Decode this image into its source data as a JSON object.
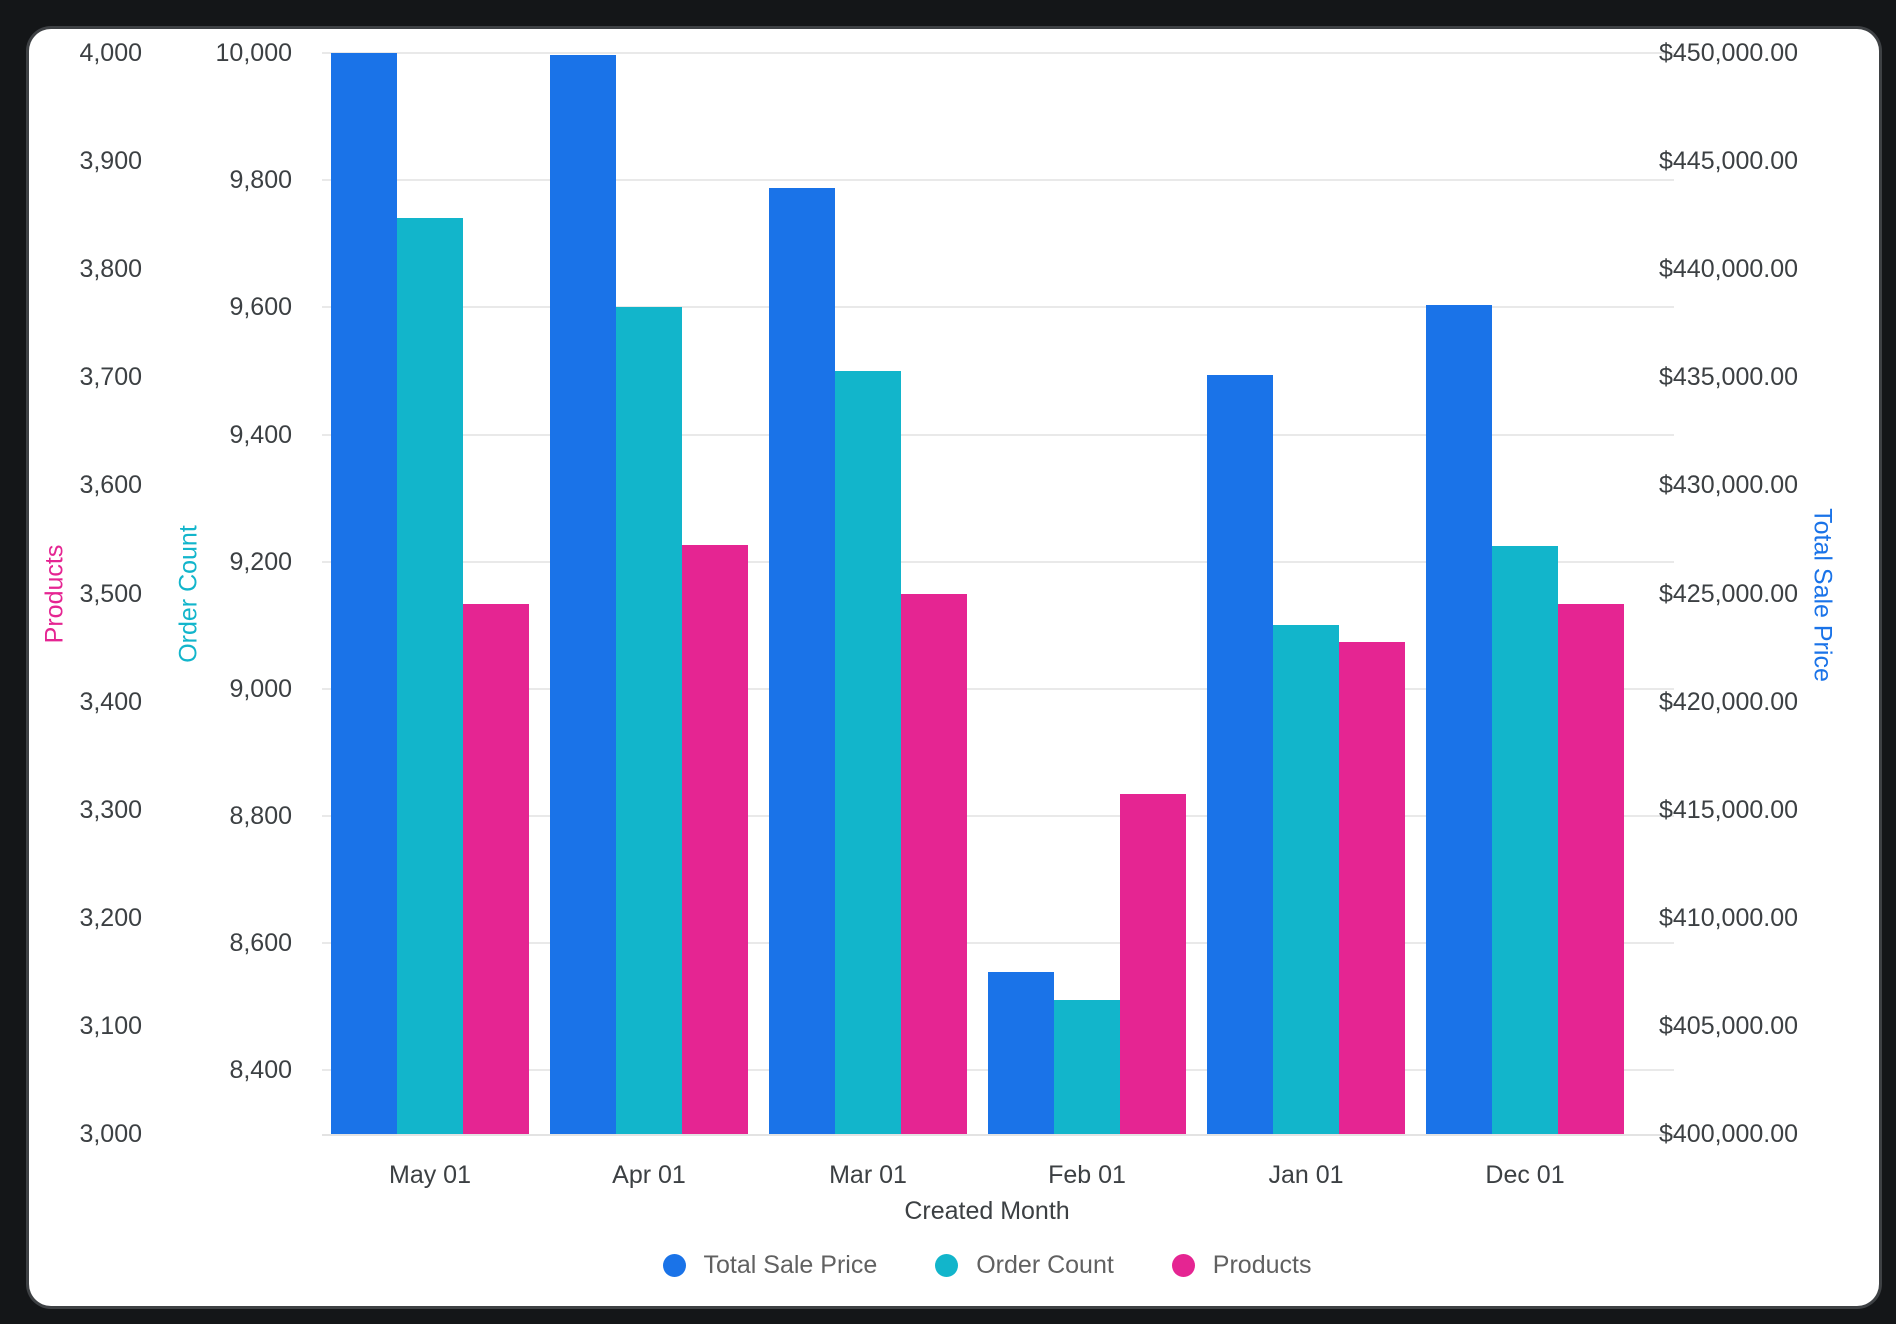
{
  "chart_data": {
    "type": "bar",
    "categories": [
      "May 01",
      "Apr 01",
      "Mar 01",
      "Feb 01",
      "Jan 01",
      "Dec 01"
    ],
    "xlabel": "Created Month",
    "legend_position": "bottom",
    "grid": "horizontal gridlines at Order Count ticks",
    "series": [
      {
        "name": "Total Sale Price",
        "axis": "price",
        "color": "#1A73E8",
        "values": [
          450000,
          449900,
          443750,
          407500,
          435100,
          438350
        ]
      },
      {
        "name": "Order Count",
        "axis": "order",
        "color": "#12B5CB",
        "values": [
          9740,
          9600,
          9500,
          8510,
          9100,
          9225
        ]
      },
      {
        "name": "Products",
        "axis": "products",
        "color": "#E52592",
        "values": [
          3490,
          3545,
          3500,
          3315,
          3455,
          3490
        ]
      }
    ],
    "axes": {
      "products": {
        "title": "Products",
        "side": "left-outer",
        "color": "#E52592",
        "min": 3000,
        "max": 4000,
        "tick_values": [
          3000,
          3100,
          3200,
          3300,
          3400,
          3500,
          3600,
          3700,
          3800,
          3900,
          4000
        ],
        "tick_labels": [
          "3,000",
          "3,100",
          "3,200",
          "3,300",
          "3,400",
          "3,500",
          "3,600",
          "3,700",
          "3,800",
          "3,900",
          "4,000"
        ]
      },
      "order": {
        "title": "Order Count",
        "side": "left-inner",
        "color": "#12B5CB",
        "min": 8300,
        "max": 10000,
        "tick_values": [
          8400,
          8600,
          8800,
          9000,
          9200,
          9400,
          9600,
          9800,
          10000
        ],
        "tick_labels": [
          "8,400",
          "8,600",
          "8,800",
          "9,000",
          "9,200",
          "9,400",
          "9,600",
          "9,800",
          "10,000"
        ]
      },
      "price": {
        "title": "Total Sale Price",
        "side": "right",
        "color": "#1A73E8",
        "min": 400000,
        "max": 450000,
        "tick_values": [
          400000,
          405000,
          410000,
          415000,
          420000,
          425000,
          430000,
          435000,
          440000,
          445000,
          450000
        ],
        "tick_labels": [
          "$400,000.00",
          "$405,000.00",
          "$410,000.00",
          "$415,000.00",
          "$420,000.00",
          "$425,000.00",
          "$430,000.00",
          "$435,000.00",
          "$440,000.00",
          "$445,000.00",
          "$450,000.00"
        ]
      }
    }
  }
}
